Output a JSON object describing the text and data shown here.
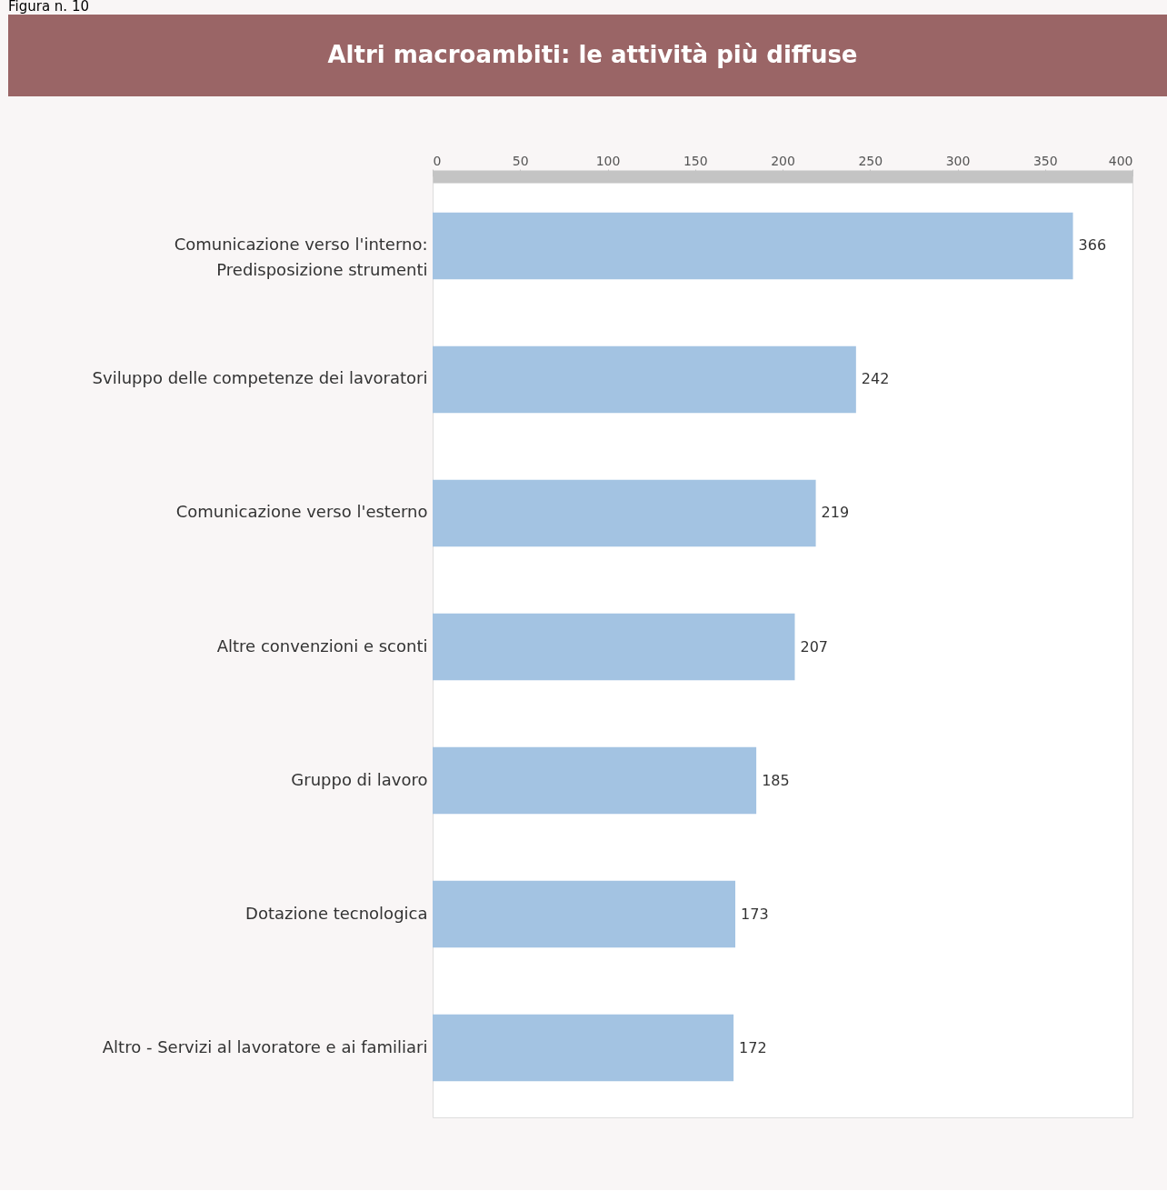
{
  "chart_data": {
    "type": "bar",
    "orientation": "horizontal",
    "title": "Altri macroambiti: le attività più diffuse",
    "annotations": [
      "Figura n. 10"
    ],
    "categories": [
      "Comunicazione verso l'interno:\nPredisposizione strumenti",
      "Sviluppo delle competenze dei lavoratori",
      "Comunicazione verso l'esterno",
      "Altre convenzioni e sconti",
      "Gruppo di lavoro",
      "Dotazione tecnologica",
      "Altro - Servizi al lavoratore e ai familiari"
    ],
    "values": [
      366,
      242,
      219,
      207,
      185,
      173,
      172
    ],
    "color": "#a3c3e2",
    "xlim": [
      0,
      400
    ],
    "xticks": [
      0,
      50,
      100,
      150,
      200,
      250,
      300,
      350,
      400
    ],
    "data_labels": true,
    "grid": false
  }
}
